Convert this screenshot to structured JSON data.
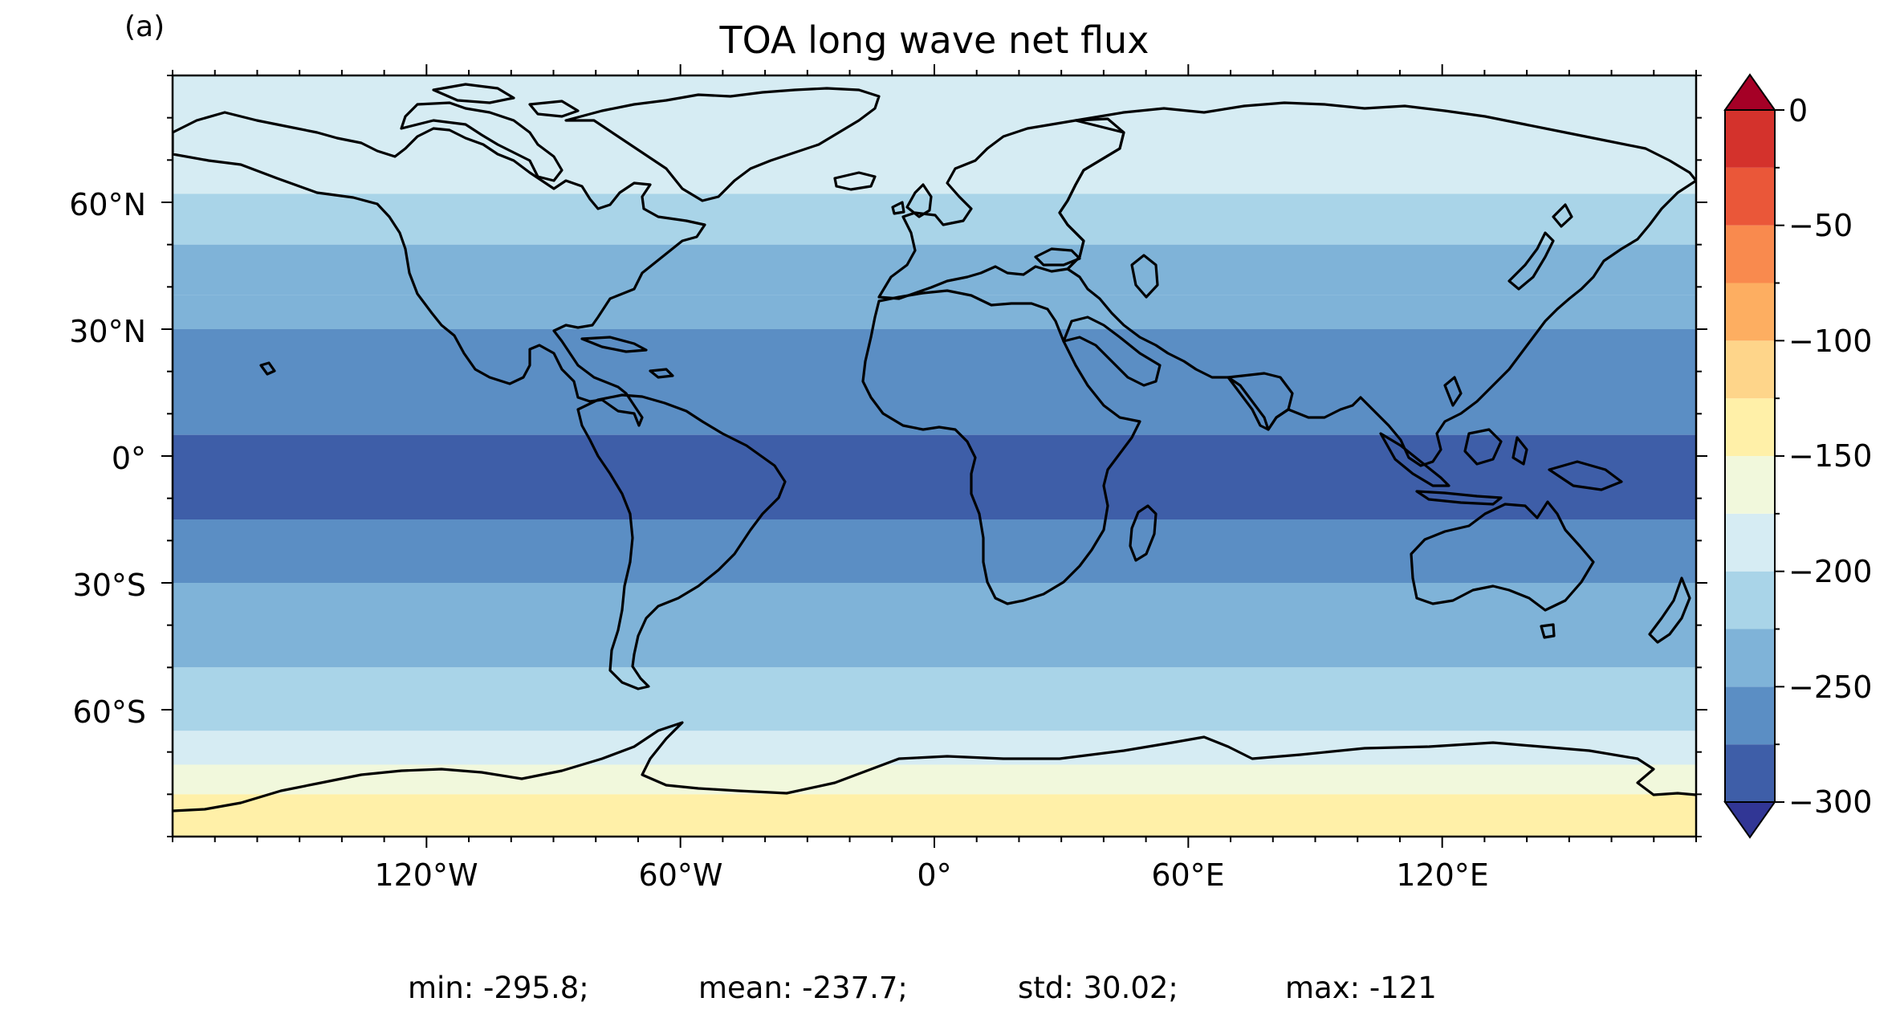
{
  "panel_label": "(a)",
  "title": "TOA long wave net flux",
  "map": {
    "x_ticks": [
      {
        "lon": -120,
        "label": "120°W"
      },
      {
        "lon": -60,
        "label": "60°W"
      },
      {
        "lon": 0,
        "label": "0°"
      },
      {
        "lon": 60,
        "label": "60°E"
      },
      {
        "lon": 120,
        "label": "120°E"
      }
    ],
    "y_ticks": [
      {
        "lat": 60,
        "label": "60°N"
      },
      {
        "lat": 30,
        "label": "30°N"
      },
      {
        "lat": 0,
        "label": "0°"
      },
      {
        "lat": -30,
        "label": "30°S"
      },
      {
        "lat": -60,
        "label": "60°S"
      }
    ],
    "lon_range": [
      -180,
      180
    ],
    "lat_range": [
      -90,
      90
    ],
    "field_bands": [
      {
        "lat_top": 90,
        "lat_bottom": 62,
        "value": -200
      },
      {
        "lat_top": 62,
        "lat_bottom": 50,
        "value": -220
      },
      {
        "lat_top": 50,
        "lat_bottom": 38,
        "value": -235
      },
      {
        "lat_top": 38,
        "lat_bottom": 30,
        "value": -245
      },
      {
        "lat_top": 30,
        "lat_bottom": 15,
        "value": -270
      },
      {
        "lat_top": 15,
        "lat_bottom": 5,
        "value": -255
      },
      {
        "lat_top": 5,
        "lat_bottom": -15,
        "value": -280
      },
      {
        "lat_top": -15,
        "lat_bottom": -30,
        "value": -265
      },
      {
        "lat_top": -30,
        "lat_bottom": -50,
        "value": -240
      },
      {
        "lat_top": -50,
        "lat_bottom": -65,
        "value": -220
      },
      {
        "lat_top": -65,
        "lat_bottom": -73,
        "value": -195
      },
      {
        "lat_top": -73,
        "lat_bottom": -80,
        "value": -160
      },
      {
        "lat_top": -80,
        "lat_bottom": -90,
        "value": -145
      }
    ]
  },
  "colorbar": {
    "levels": [
      -300,
      -275,
      -250,
      -225,
      -200,
      -175,
      -150,
      -125,
      -100,
      -75,
      -50,
      -25,
      0
    ],
    "tick_values": [
      0,
      -50,
      -100,
      -150,
      -200,
      -250,
      -300
    ],
    "tick_labels": [
      "0",
      "−50",
      "−100",
      "−150",
      "−200",
      "−250",
      "−300"
    ],
    "colors": [
      "#3e5ea8",
      "#5b8ec4",
      "#7fb3d8",
      "#a9d4e8",
      "#d6ecf3",
      "#f1f8dc",
      "#fff0a8",
      "#fed58a",
      "#fdae61",
      "#f98a4e",
      "#ea5739",
      "#d4322c"
    ],
    "extend_low_color": "#313695",
    "extend_high_color": "#a50026"
  },
  "stats": {
    "min": "min: -295.8;",
    "mean": "mean: -237.7;",
    "std": "std: 30.02;",
    "max": "max: -121"
  }
}
